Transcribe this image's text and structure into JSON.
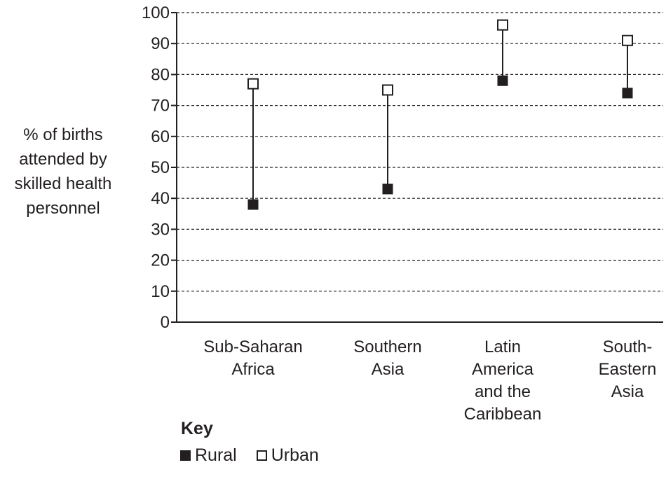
{
  "chart_data": {
    "type": "dumbbell",
    "ylabel_lines": [
      "% of births",
      "attended by",
      "skilled health",
      "personnel"
    ],
    "ylim": [
      0,
      100
    ],
    "yticks": [
      0,
      10,
      20,
      30,
      40,
      50,
      60,
      70,
      80,
      90,
      100
    ],
    "grid": "dashed-horizontal",
    "categories": [
      [
        "Sub-Saharan",
        "Africa"
      ],
      [
        "Southern",
        "Asia"
      ],
      [
        "Latin",
        "America",
        "and the",
        "Caribbean"
      ],
      [
        "South-",
        "Eastern",
        "Asia"
      ]
    ],
    "series": [
      {
        "name": "Rural",
        "marker": "filled-square",
        "values": [
          38,
          43,
          78,
          74
        ]
      },
      {
        "name": "Urban",
        "marker": "open-square",
        "values": [
          77,
          75,
          96,
          91
        ]
      }
    ],
    "key": {
      "title": "Key",
      "items": [
        "Rural",
        "Urban"
      ]
    }
  }
}
